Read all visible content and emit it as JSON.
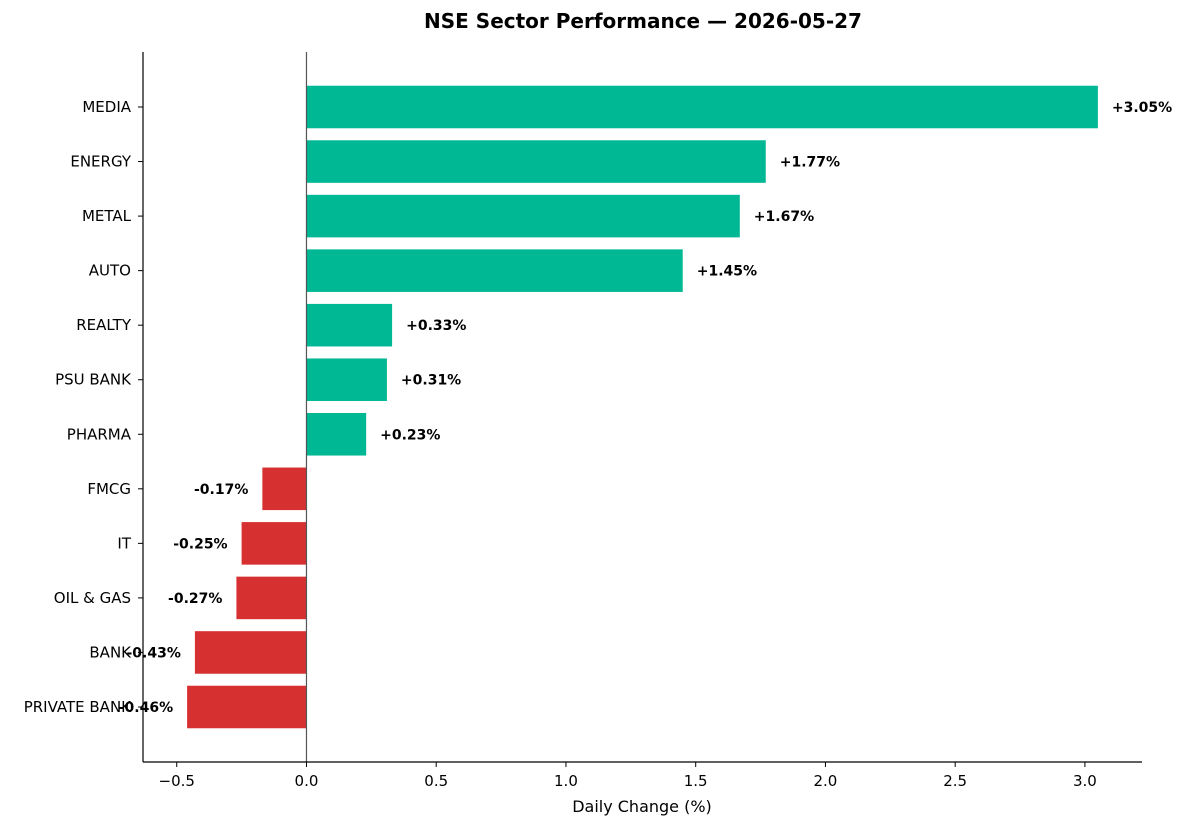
{
  "chart_data": {
    "type": "bar",
    "orientation": "horizontal",
    "title": "NSE Sector Performance — 2026-05-27",
    "xlabel": "Daily Change (%)",
    "ylabel": "",
    "xlim": [
      -0.63,
      3.22
    ],
    "xticks": [
      -0.5,
      0.0,
      0.5,
      1.0,
      1.5,
      2.0,
      2.5,
      3.0
    ],
    "xtick_labels": [
      "−0.5",
      "0.0",
      "0.5",
      "1.0",
      "1.5",
      "2.0",
      "2.5",
      "3.0"
    ],
    "grid": false,
    "categories": [
      "MEDIA",
      "ENERGY",
      "METAL",
      "AUTO",
      "REALTY",
      "PSU BANK",
      "PHARMA",
      "FMCG",
      "IT",
      "OIL & GAS",
      "BANK",
      "PRIVATE BANK"
    ],
    "values": [
      3.05,
      1.77,
      1.67,
      1.45,
      0.33,
      0.31,
      0.23,
      -0.17,
      -0.25,
      -0.27,
      -0.43,
      -0.46
    ],
    "data_labels": [
      "+3.05%",
      "+1.77%",
      "+1.67%",
      "+1.45%",
      "+0.33%",
      "+0.31%",
      "+0.23%",
      "-0.17%",
      "-0.25%",
      "-0.27%",
      "-0.43%",
      "-0.46%"
    ],
    "colors": {
      "positive": "#00b894",
      "negative": "#d63031",
      "zero_line": "#555555",
      "axis": "#000000"
    }
  }
}
